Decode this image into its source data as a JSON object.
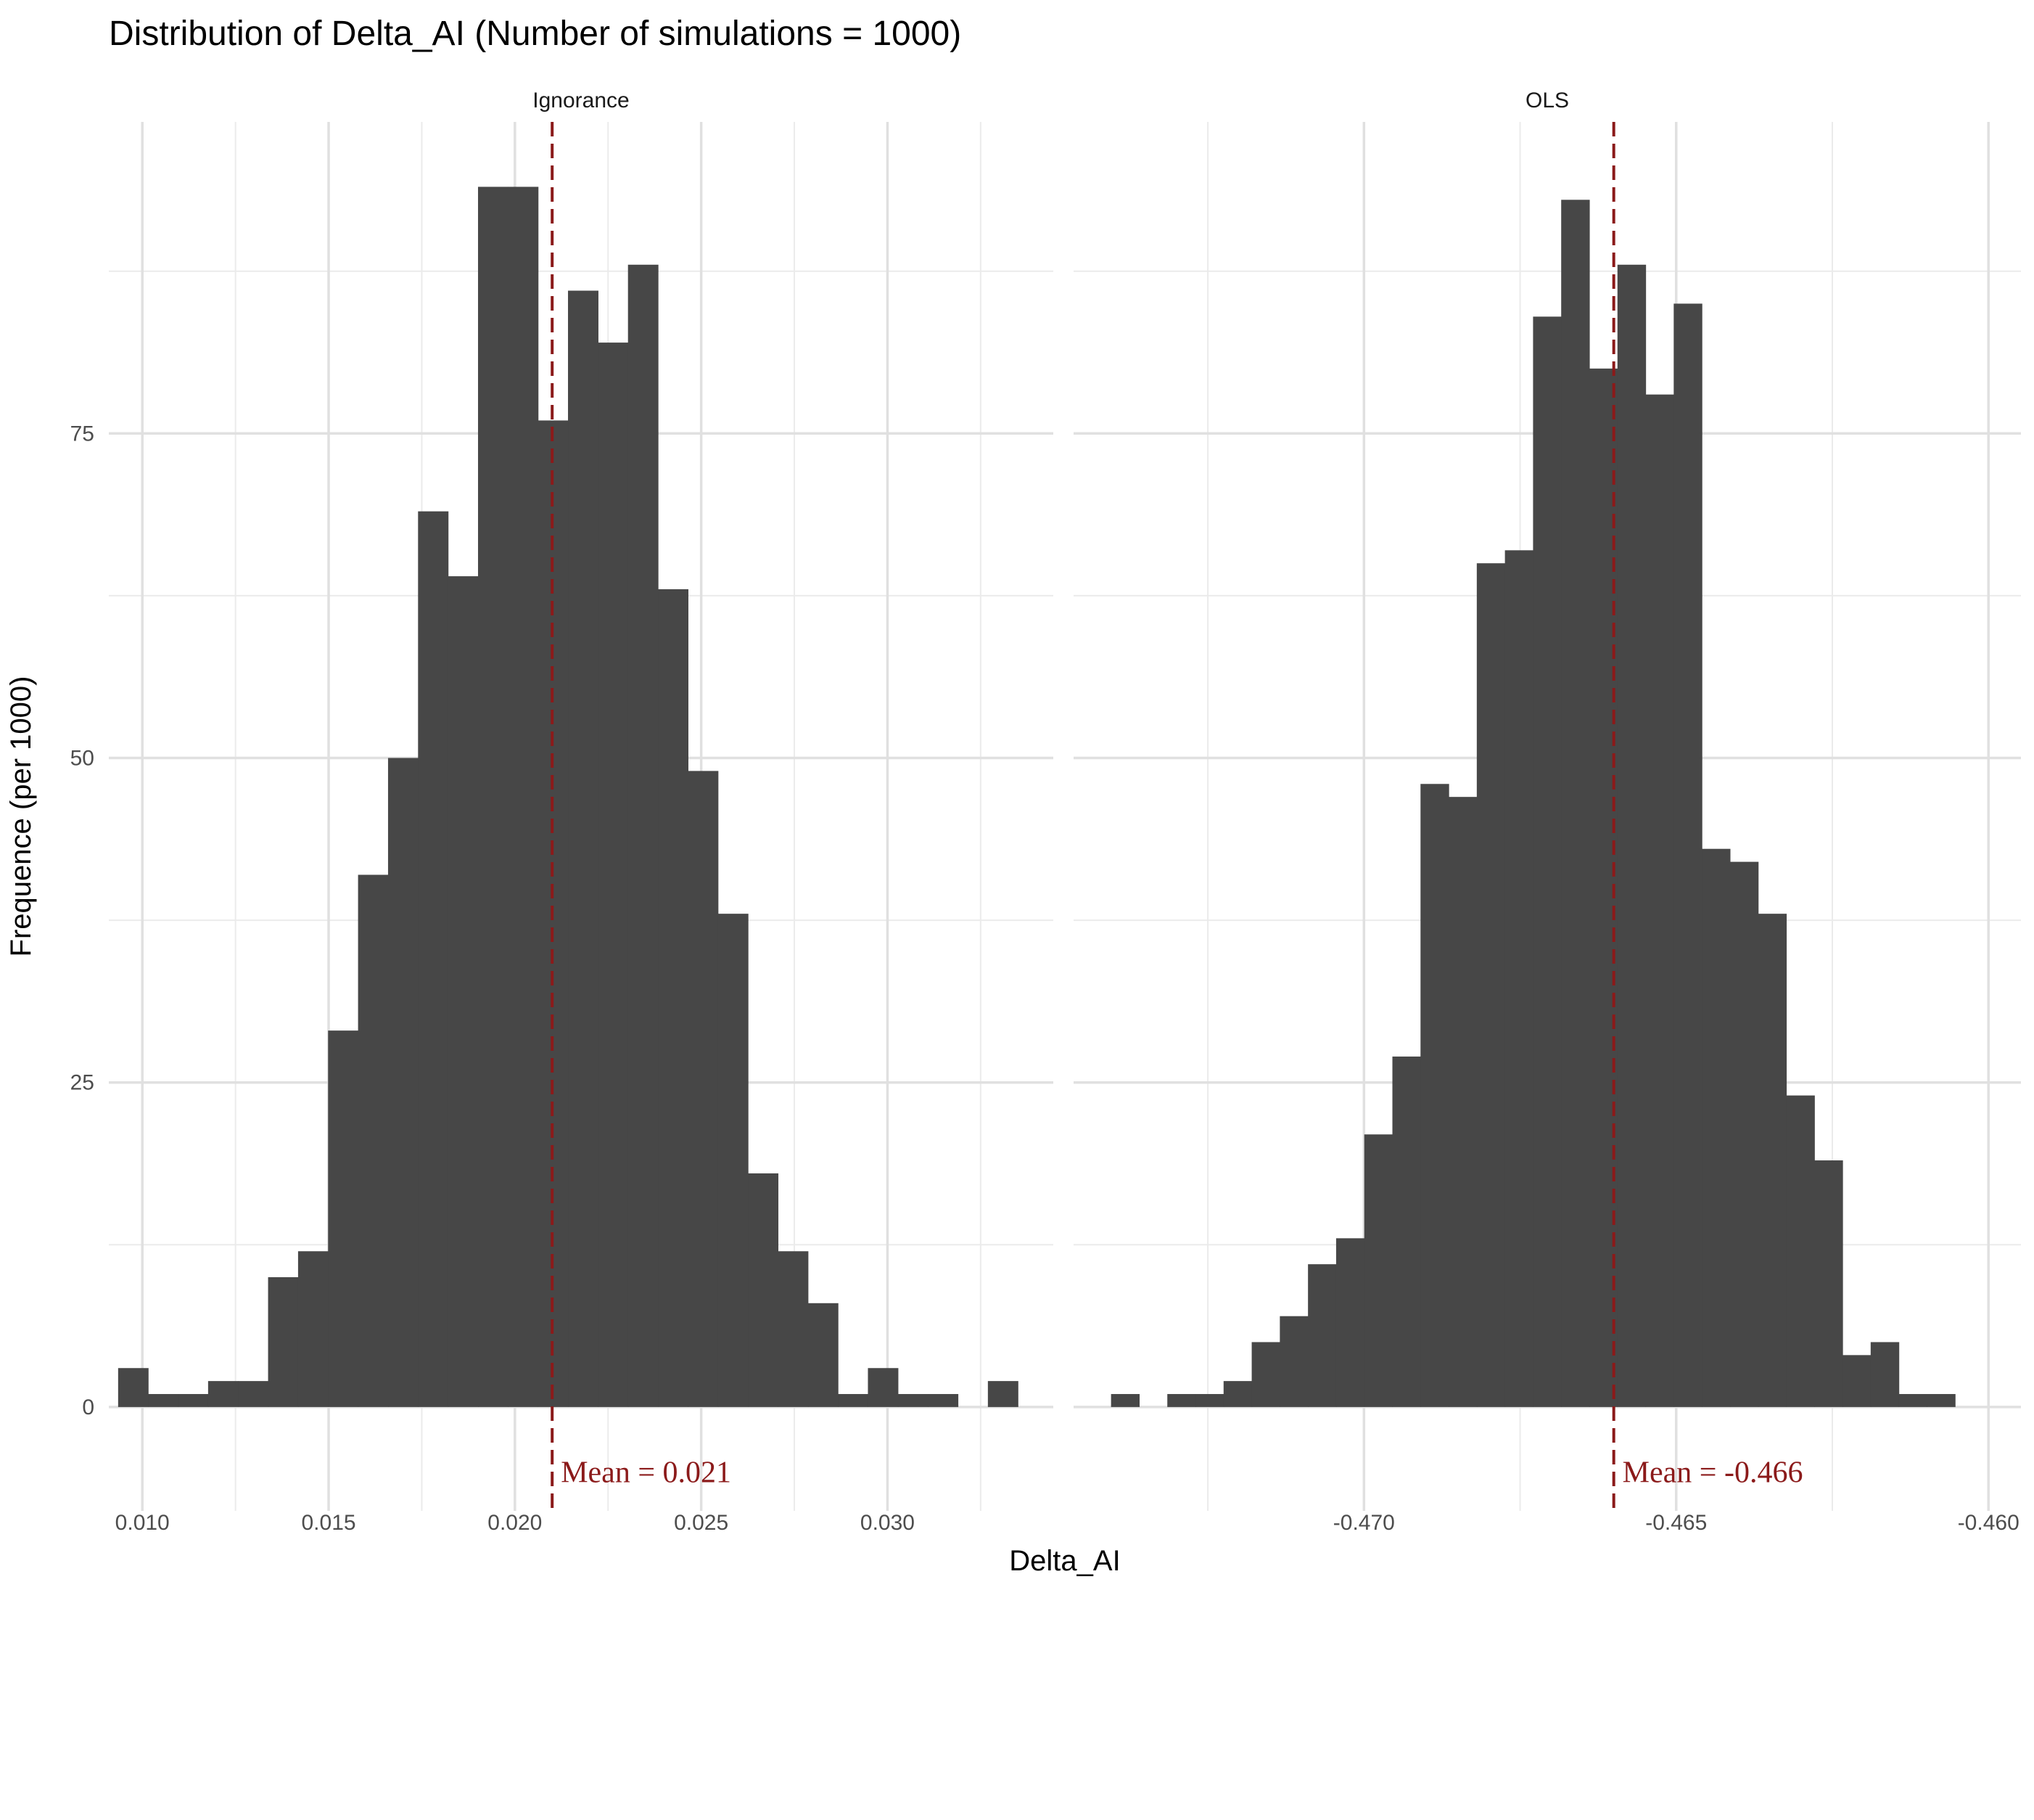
{
  "chart_data": {
    "type": "bar",
    "title": "Distribution of Delta_AI (Number of simulations = 1000)",
    "xlabel": "Delta_AI",
    "ylabel": "Frequence (per 1000)",
    "ylim": [
      -8,
      99
    ],
    "y_ticks": [
      0,
      25,
      50,
      75
    ],
    "y_tick_labels": [
      "0",
      "25",
      "50",
      "75"
    ],
    "grid": true,
    "bar_color": "#474747",
    "mean_line_color": "#8b1a1a",
    "panels": [
      {
        "name": "Ignorance",
        "xlim": [
          0.0091,
          0.03445
        ],
        "x_ticks": [
          0.01,
          0.015,
          0.02,
          0.025,
          0.03
        ],
        "x_tick_labels": [
          "0.010",
          "0.015",
          "0.020",
          "0.025",
          "0.030"
        ],
        "bins": {
          "start": 0.00935,
          "width": 0.000805,
          "counts": [
            3,
            1,
            1,
            2,
            2,
            10,
            12,
            29,
            41,
            50,
            69,
            64,
            94,
            94,
            76,
            86,
            82,
            88,
            63,
            49,
            38,
            18,
            12,
            8,
            1,
            3,
            1,
            1,
            0,
            2
          ]
        },
        "mean": 0.021,
        "mean_label": "Mean = 0.021"
      },
      {
        "name": "OLS",
        "xlim": [
          -0.47465,
          -0.45948
        ],
        "x_ticks": [
          -0.47,
          -0.465,
          -0.46
        ],
        "x_tick_labels": [
          "-0.470",
          "-0.465",
          "-0.460"
        ],
        "bins": {
          "start": -0.47405,
          "width": 0.0004505,
          "counts": [
            1,
            0,
            1,
            1,
            2,
            5,
            7,
            11,
            13,
            21,
            27,
            48,
            47,
            65,
            66,
            84,
            93,
            80,
            88,
            78,
            85,
            43,
            42,
            38,
            24,
            19,
            4,
            5,
            1,
            1
          ]
        },
        "mean": -0.466,
        "mean_label": "Mean = -0.466"
      }
    ]
  }
}
